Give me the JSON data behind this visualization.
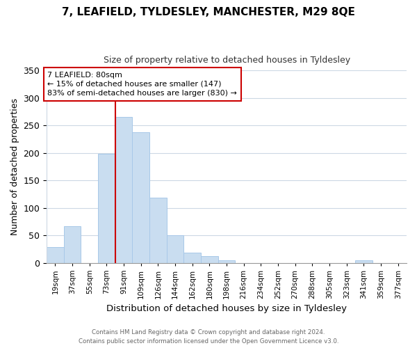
{
  "title": "7, LEAFIELD, TYLDESLEY, MANCHESTER, M29 8QE",
  "subtitle": "Size of property relative to detached houses in Tyldesley",
  "xlabel": "Distribution of detached houses by size in Tyldesley",
  "ylabel": "Number of detached properties",
  "bar_labels": [
    "19sqm",
    "37sqm",
    "55sqm",
    "73sqm",
    "91sqm",
    "109sqm",
    "126sqm",
    "144sqm",
    "162sqm",
    "180sqm",
    "198sqm",
    "216sqm",
    "234sqm",
    "252sqm",
    "270sqm",
    "288sqm",
    "305sqm",
    "323sqm",
    "341sqm",
    "359sqm",
    "377sqm"
  ],
  "bar_heights": [
    28,
    66,
    0,
    198,
    265,
    238,
    118,
    50,
    19,
    12,
    5,
    0,
    0,
    0,
    0,
    0,
    0,
    0,
    4,
    0,
    0
  ],
  "bar_color": "#c9ddf0",
  "bar_edge_color": "#a8c8e8",
  "ylim": [
    0,
    350
  ],
  "yticks": [
    0,
    50,
    100,
    150,
    200,
    250,
    300,
    350
  ],
  "marker_bar_index": 4,
  "marker_label": "7 LEAFIELD: 80sqm",
  "annotation_line1": "← 15% of detached houses are smaller (147)",
  "annotation_line2": "83% of semi-detached houses are larger (830) →",
  "footer1": "Contains HM Land Registry data © Crown copyright and database right 2024.",
  "footer2": "Contains public sector information licensed under the Open Government Licence v3.0.",
  "background_color": "#ffffff",
  "grid_color": "#ccd8e4",
  "annotation_box_edge": "#cc0000",
  "red_line_color": "#cc0000"
}
